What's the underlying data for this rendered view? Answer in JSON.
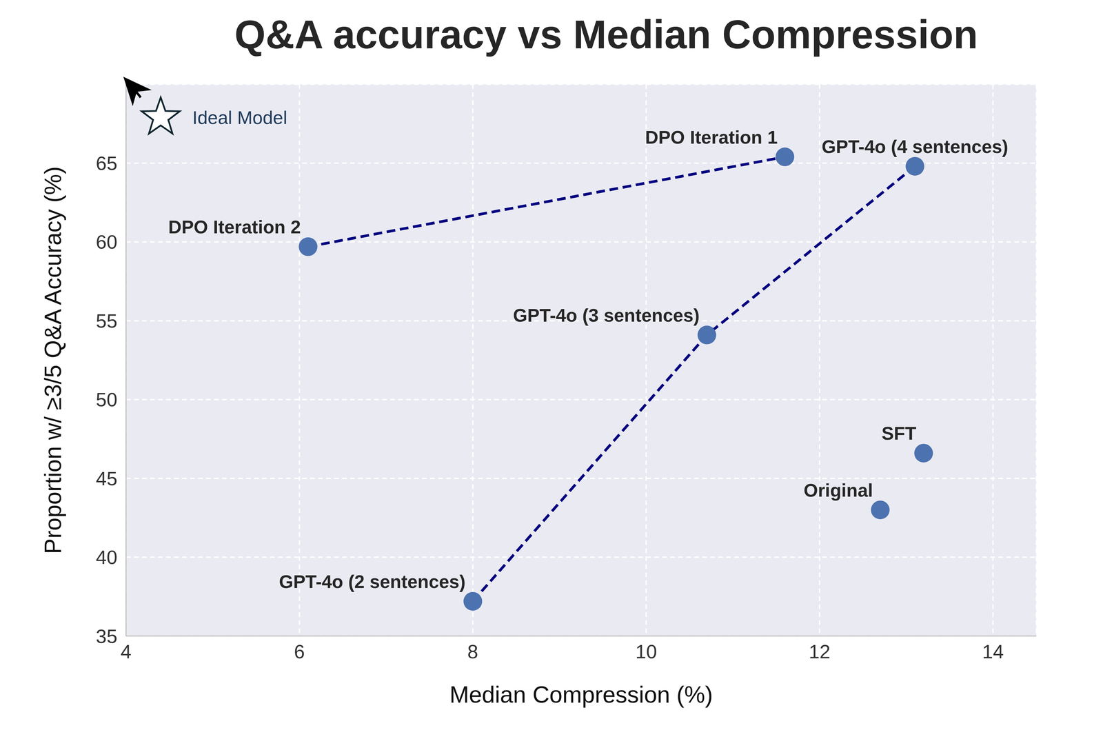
{
  "chart_data": {
    "type": "scatter",
    "title": "Q&A accuracy vs Median Compression",
    "x_label": "Median Compression (%)",
    "y_label": "Proportion w/ ≥3/5 Q&A Accuracy (%)",
    "xlim": [
      4,
      14.5
    ],
    "xticks": [
      4,
      6,
      8,
      10,
      12,
      14
    ],
    "ylim": [
      35,
      70
    ],
    "yticks": [
      35,
      40,
      45,
      50,
      55,
      60,
      65
    ],
    "grid": true,
    "color": "#4c72b0",
    "marker": "circle",
    "points": [
      {
        "label": "DPO Iteration 2",
        "x": 6.1,
        "y": 59.7
      },
      {
        "label": "DPO Iteration 1",
        "x": 11.6,
        "y": 65.4
      },
      {
        "label": "GPT-4o (4 sentences)",
        "x": 13.1,
        "y": 64.8
      },
      {
        "label": "GPT-4o (3 sentences)",
        "x": 10.7,
        "y": 54.1
      },
      {
        "label": "GPT-4o (2 sentences)",
        "x": 8.0,
        "y": 37.2
      },
      {
        "label": "SFT",
        "x": 13.2,
        "y": 46.6
      },
      {
        "label": "Original",
        "x": 12.7,
        "y": 43.0
      }
    ],
    "lines": [
      {
        "points": [
          "DPO Iteration 2",
          "DPO Iteration 1"
        ],
        "color": "#000080",
        "line_style": "dashed"
      },
      {
        "points": [
          "GPT-4o (2 sentences)",
          "GPT-4o (3 sentences)",
          "GPT-4o (4 sentences)"
        ],
        "color": "#000080",
        "line_style": "dashed"
      }
    ],
    "annotations": [
      {
        "text": "Ideal Model",
        "x": 4.4,
        "y": 67.9,
        "marker": "star"
      }
    ]
  }
}
